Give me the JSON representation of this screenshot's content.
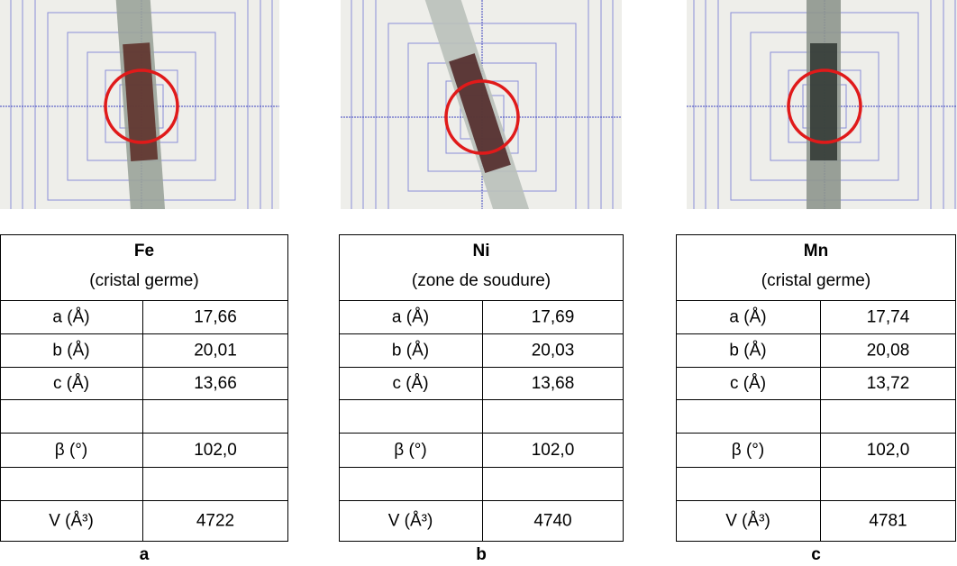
{
  "panels": [
    {
      "element": "Fe",
      "note": "(cristal germe)",
      "rows": [
        [
          "a (Å)",
          "17,66"
        ],
        [
          "b (Å)",
          "20,01"
        ],
        [
          "c (Å)",
          "13,66"
        ],
        [
          "β (°)",
          "102,0"
        ],
        [
          "V (Å³)",
          "4722"
        ]
      ],
      "caption": "a"
    },
    {
      "element": "Ni",
      "note": "(zone de soudure)",
      "rows": [
        [
          "a (Å)",
          "17,69"
        ],
        [
          "b (Å)",
          "20,03"
        ],
        [
          "c (Å)",
          "13,68"
        ],
        [
          "β (°)",
          "102,0"
        ],
        [
          "V (Å³)",
          "4740"
        ]
      ],
      "caption": "b"
    },
    {
      "element": "Mn",
      "note": "(cristal germe)",
      "rows": [
        [
          "a (Å)",
          "17,74"
        ],
        [
          "b (Å)",
          "20,08"
        ],
        [
          "c (Å)",
          "13,72"
        ],
        [
          "β (°)",
          "102,0"
        ],
        [
          "V (Å³)",
          "4781"
        ]
      ],
      "caption": "c"
    }
  ]
}
